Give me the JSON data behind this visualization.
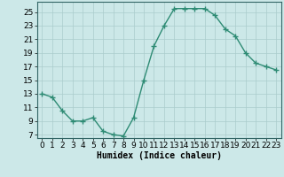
{
  "x": [
    0,
    1,
    2,
    3,
    4,
    5,
    6,
    7,
    8,
    9,
    10,
    11,
    12,
    13,
    14,
    15,
    16,
    17,
    18,
    19,
    20,
    21,
    22,
    23
  ],
  "y": [
    13,
    12.5,
    10.5,
    9,
    9,
    9.5,
    7.5,
    7,
    6.8,
    9.5,
    15,
    20,
    23,
    25.5,
    25.5,
    25.5,
    25.5,
    24.5,
    22.5,
    21.5,
    19,
    17.5,
    17,
    16.5
  ],
  "line_color": "#2e8b74",
  "marker": "+",
  "marker_size": 4,
  "marker_lw": 1.0,
  "bg_color": "#cce8e8",
  "grid_color": "#aacccc",
  "xlabel": "Humidex (Indice chaleur)",
  "xlim": [
    -0.5,
    23.5
  ],
  "ylim": [
    6.5,
    26.5
  ],
  "yticks": [
    7,
    9,
    11,
    13,
    15,
    17,
    19,
    21,
    23,
    25
  ],
  "xticks": [
    0,
    1,
    2,
    3,
    4,
    5,
    6,
    7,
    8,
    9,
    10,
    11,
    12,
    13,
    14,
    15,
    16,
    17,
    18,
    19,
    20,
    21,
    22,
    23
  ],
  "label_fontsize": 7,
  "tick_fontsize": 6.5,
  "line_width": 1.0
}
